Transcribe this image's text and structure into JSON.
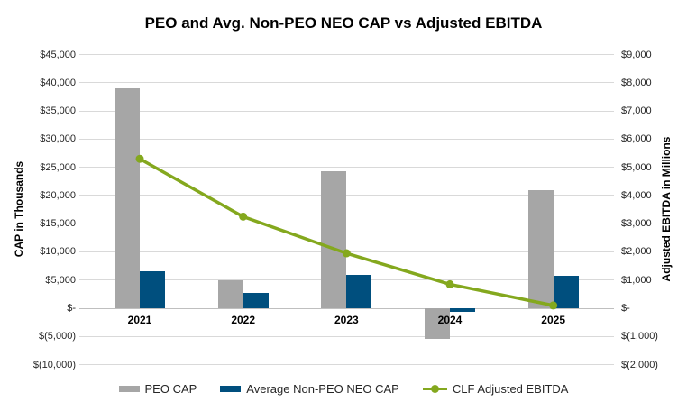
{
  "title": "PEO and Avg. Non-PEO NEO CAP vs Adjusted EBITDA",
  "colors": {
    "peo_bar": "#a6a6a6",
    "neo_bar": "#004f7e",
    "ebitda_line": "#84a81e",
    "gridline": "#d9d9d9"
  },
  "chart_data": {
    "type": "combo-bar-line",
    "title": "PEO and Avg. Non-PEO NEO CAP vs Adjusted EBITDA",
    "categories": [
      "2021",
      "2022",
      "2023",
      "2024",
      "2025"
    ],
    "bar_series": [
      {
        "name": "PEO CAP",
        "axis": "left",
        "color": "#a6a6a6",
        "values": [
          39000,
          5000,
          24300,
          -5400,
          20900
        ]
      },
      {
        "name": "Average Non-PEO NEO CAP",
        "axis": "left",
        "color": "#004f7e",
        "values": [
          6500,
          2800,
          5900,
          -700,
          5800
        ]
      }
    ],
    "line_series": [
      {
        "name": "CLF Adjusted EBITDA",
        "axis": "right",
        "color": "#84a81e",
        "values": [
          5300,
          3250,
          1950,
          850,
          100
        ]
      }
    ],
    "left_axis": {
      "title": "CAP in Thousands",
      "min": -10000,
      "max": 45000,
      "step": 5000,
      "tick_labels": [
        "$45,000",
        "$40,000",
        "$35,000",
        "$30,000",
        "$25,000",
        "$20,000",
        "$15,000",
        "$10,000",
        "$5,000",
        "$-",
        "$(5,000)",
        "$(10,000)"
      ]
    },
    "right_axis": {
      "title": "Adjusted EBITDA in Millions",
      "min": -2000,
      "max": 9000,
      "step": 1000,
      "tick_labels": [
        "$9,000",
        "$8,000",
        "$7,000",
        "$6,000",
        "$5,000",
        "$4,000",
        "$3,000",
        "$2,000",
        "$1,000",
        "$-",
        "$(1,000)",
        "$(2,000)"
      ]
    },
    "grid": true,
    "legend_position": "bottom"
  }
}
